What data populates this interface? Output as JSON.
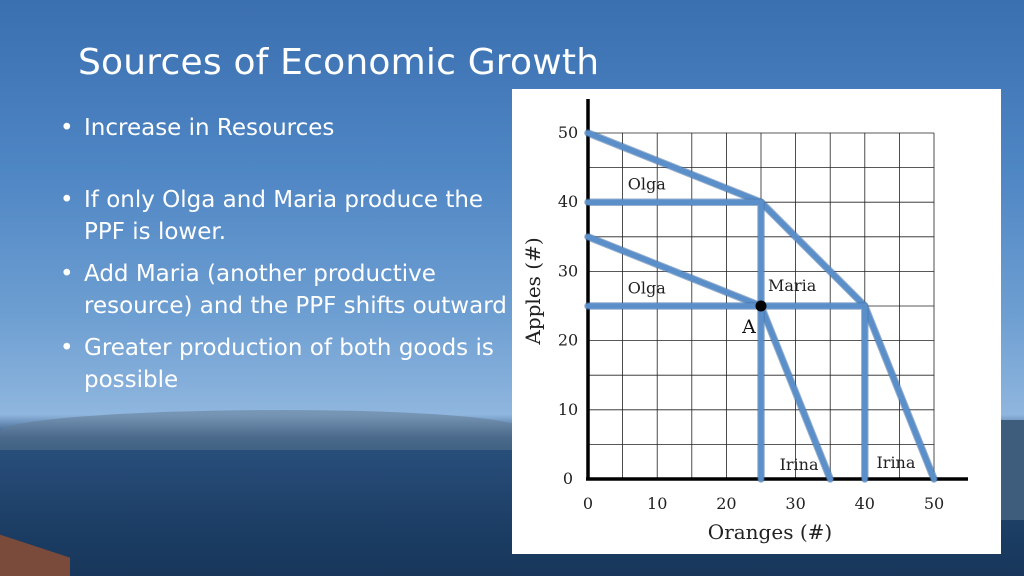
{
  "slide": {
    "title": "Sources of Economic Growth",
    "bullets": [
      "Increase in Resources",
      "If only Olga and Maria produce the PPF is lower.",
      "Add Maria (another productive resource) and the PPF shifts outward",
      "Greater production of both goods is possible"
    ]
  },
  "chart_data": {
    "type": "line",
    "xlabel": "Oranges (#)",
    "ylabel": "Apples (#)",
    "xlim": [
      0,
      50
    ],
    "ylim": [
      0,
      50
    ],
    "x_ticks": [
      0,
      10,
      20,
      30,
      40,
      50
    ],
    "y_ticks": [
      0,
      10,
      20,
      30,
      40,
      50
    ],
    "grid": true,
    "series": [
      {
        "points": [
          [
            0,
            50
          ],
          [
            25,
            40
          ],
          [
            40,
            25
          ],
          [
            50,
            0
          ]
        ]
      },
      {
        "points": [
          [
            0,
            35
          ],
          [
            25,
            25
          ],
          [
            35,
            0
          ]
        ]
      },
      {
        "points": [
          [
            0,
            40
          ],
          [
            25,
            40
          ],
          [
            25,
            0
          ]
        ]
      },
      {
        "points": [
          [
            0,
            25
          ],
          [
            40,
            25
          ],
          [
            40,
            0
          ]
        ]
      }
    ],
    "point": {
      "label": "A",
      "x": 25,
      "y": 25
    },
    "annotations": [
      {
        "text": "Olga",
        "x": 8.5,
        "y": 41.8
      },
      {
        "text": "Olga",
        "x": 8.5,
        "y": 26.8
      },
      {
        "text": "Maria",
        "x": 29.5,
        "y": 27.2
      },
      {
        "text": "Irina",
        "x": 30.5,
        "y": 1.3
      },
      {
        "text": "Irina",
        "x": 44.5,
        "y": 1.6
      }
    ],
    "colors": {
      "line": "#5b8fc9",
      "line_edge": "#3f6ea6",
      "grid": "#222222",
      "point": "#000000"
    }
  }
}
